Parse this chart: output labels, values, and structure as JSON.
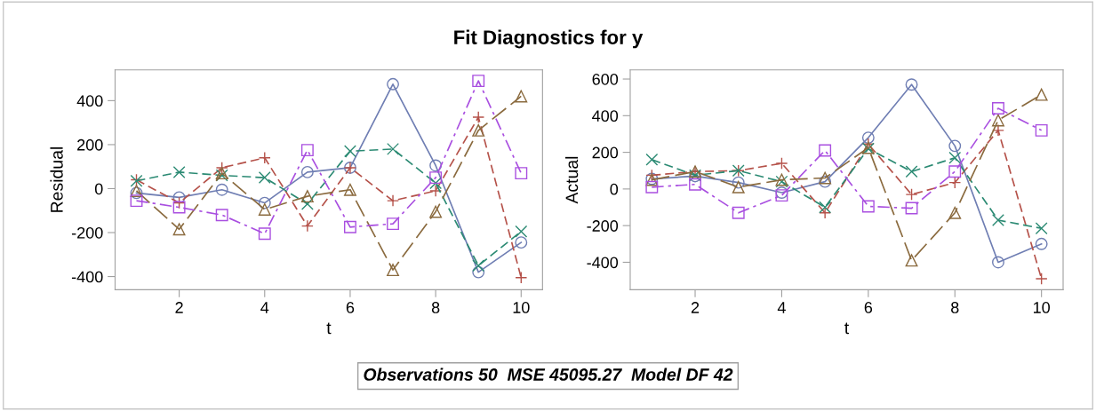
{
  "chart_data": [
    {
      "type": "line",
      "title": "Fit Diagnostics for y",
      "xlabel": "t",
      "ylabel": "Residual",
      "annotations": [
        "Observations 50  MSE 45095.27  Model DF 42"
      ],
      "x": [
        1,
        2,
        3,
        4,
        5,
        6,
        7,
        8,
        9,
        10
      ],
      "xlim": [
        0.5,
        10.5
      ],
      "xticks": [
        2,
        4,
        6,
        8,
        10
      ],
      "ylim": [
        -460,
        540
      ],
      "yticks": [
        -400,
        -200,
        0,
        200,
        400
      ],
      "grid": false,
      "legend": false,
      "series": [
        {
          "color": "#6f7eb3",
          "marker": "circle",
          "line_style": "solid",
          "values": [
            -20,
            -40,
            -5,
            -65,
            75,
            95,
            475,
            105,
            -380,
            -245
          ]
        },
        {
          "color": "#b5524a",
          "marker": "plus",
          "line_style": "dashed",
          "values": [
            40,
            -65,
            95,
            140,
            -170,
            95,
            -55,
            -10,
            325,
            -405
          ]
        },
        {
          "color": "#2b8a73",
          "marker": "cross",
          "line_style": "dashed",
          "values": [
            35,
            75,
            60,
            50,
            -70,
            170,
            180,
            25,
            -350,
            -195
          ]
        },
        {
          "color": "#8a6a3e",
          "marker": "triangle",
          "line_style": "longdash",
          "values": [
            -10,
            -185,
            70,
            -95,
            -35,
            -5,
            -370,
            -105,
            265,
            420
          ]
        },
        {
          "color": "#a94fe0",
          "marker": "square",
          "line_style": "dashdot",
          "values": [
            -55,
            -85,
            -120,
            -205,
            175,
            -175,
            -160,
            50,
            490,
            70
          ]
        }
      ]
    },
    {
      "type": "line",
      "xlabel": "t",
      "ylabel": "Actual",
      "x": [
        1,
        2,
        3,
        4,
        5,
        6,
        7,
        8,
        9,
        10
      ],
      "xlim": [
        0.5,
        10.5
      ],
      "xticks": [
        2,
        4,
        6,
        8,
        10
      ],
      "ylim": [
        -550,
        650
      ],
      "yticks": [
        -400,
        -200,
        0,
        200,
        400,
        600
      ],
      "grid": false,
      "legend": false,
      "series": [
        {
          "color": "#6f7eb3",
          "marker": "circle",
          "line_style": "solid",
          "values": [
            55,
            70,
            35,
            -20,
            40,
            280,
            570,
            235,
            -400,
            -300
          ]
        },
        {
          "color": "#b5524a",
          "marker": "plus",
          "line_style": "dashed",
          "values": [
            75,
            95,
            100,
            140,
            -130,
            245,
            -30,
            35,
            320,
            -490
          ]
        },
        {
          "color": "#2b8a73",
          "marker": "cross",
          "line_style": "dashed",
          "values": [
            160,
            75,
            100,
            40,
            -100,
            220,
            95,
            170,
            -170,
            -215
          ]
        },
        {
          "color": "#8a6a3e",
          "marker": "triangle",
          "line_style": "longdash",
          "values": [
            50,
            95,
            10,
            50,
            60,
            225,
            -390,
            -130,
            375,
            515
          ]
        },
        {
          "color": "#a94fe0",
          "marker": "square",
          "line_style": "dashdot",
          "values": [
            10,
            25,
            -130,
            -35,
            210,
            -95,
            -105,
            95,
            440,
            320
          ]
        }
      ]
    }
  ]
}
